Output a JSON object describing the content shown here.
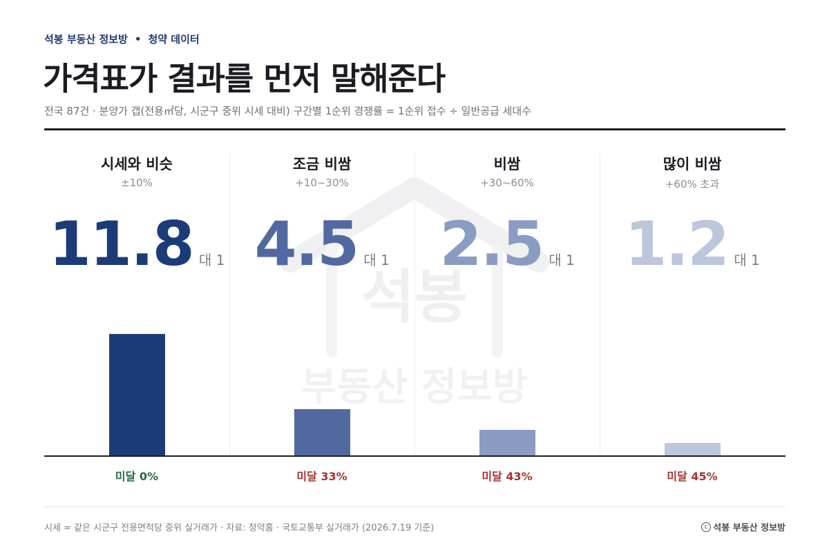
{
  "header": {
    "kicker_brand": "석봉 부동산 정보방",
    "kicker_sep": "•",
    "kicker_topic": "청약 데이터",
    "title": "가격표가 결과를 먼저 말해준다",
    "subtitle": "전국 87건 · 분양가 갭(전용㎡당, 시군구 중위 시세 대비) 구간별 1순위 경쟁률 = 1순위 접수 ÷ 일반공급 세대수"
  },
  "watermark": {
    "line1": "석봉",
    "line2": "부동산 정보방"
  },
  "chart_data": {
    "type": "bar",
    "title": "가격표가 결과를 먼저 말해준다",
    "categories": [
      "시세와 비슷",
      "조금 비쌈",
      "비쌈",
      "많이 비쌈"
    ],
    "ranges": [
      "±10%",
      "+10~30%",
      "+30~60%",
      "+60% 초과"
    ],
    "values": [
      11.8,
      4.5,
      2.5,
      1.2
    ],
    "value_unit": "대 1",
    "below_labels": [
      "미달 0%",
      "미달 33%",
      "미달 43%",
      "미달 45%"
    ],
    "colors": [
      "#1c3c78",
      "#5169a0",
      "#8a9cc2",
      "#bcc6dc"
    ],
    "below_colors": [
      "#1f6b45",
      "#a8332e",
      "#a8332e",
      "#a8332e"
    ],
    "ylim": [
      0,
      12.5
    ],
    "grid": false
  },
  "footer": {
    "note": "시세 = 같은 시군구 전용면적당 중위 실거래가 · 자료: 청약홈 · 국토교통부 실거래가 (2026.7.19 기준)",
    "copyright_symbol": "c",
    "credit": "석봉 부동산 정보방"
  }
}
